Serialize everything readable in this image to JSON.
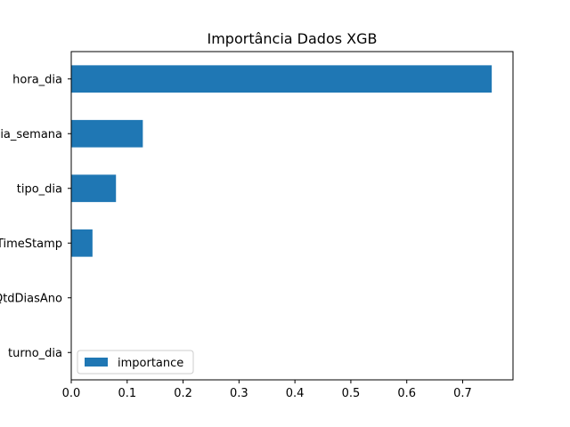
{
  "chart_data": {
    "type": "bar",
    "orientation": "horizontal",
    "title": "Importância Dados XGB",
    "xlabel": "",
    "ylabel": "",
    "categories": [
      "hora_dia",
      "dia_semana",
      "tipo_dia",
      "TimeStamp",
      "QtdDiasAno",
      "turno_dia"
    ],
    "series": [
      {
        "name": "importance",
        "values": [
          0.752,
          0.128,
          0.08,
          0.038,
          0.0,
          0.0
        ]
      }
    ],
    "xlim": [
      0,
      0.79
    ],
    "xticks": [
      0.0,
      0.1,
      0.2,
      0.3,
      0.4,
      0.5,
      0.6,
      0.7
    ],
    "xtick_labels": [
      "0.0",
      "0.1",
      "0.2",
      "0.3",
      "0.4",
      "0.5",
      "0.6",
      "0.7"
    ],
    "legend_position": "lower-left",
    "grid": false,
    "bar_color": "#1f77b4"
  }
}
